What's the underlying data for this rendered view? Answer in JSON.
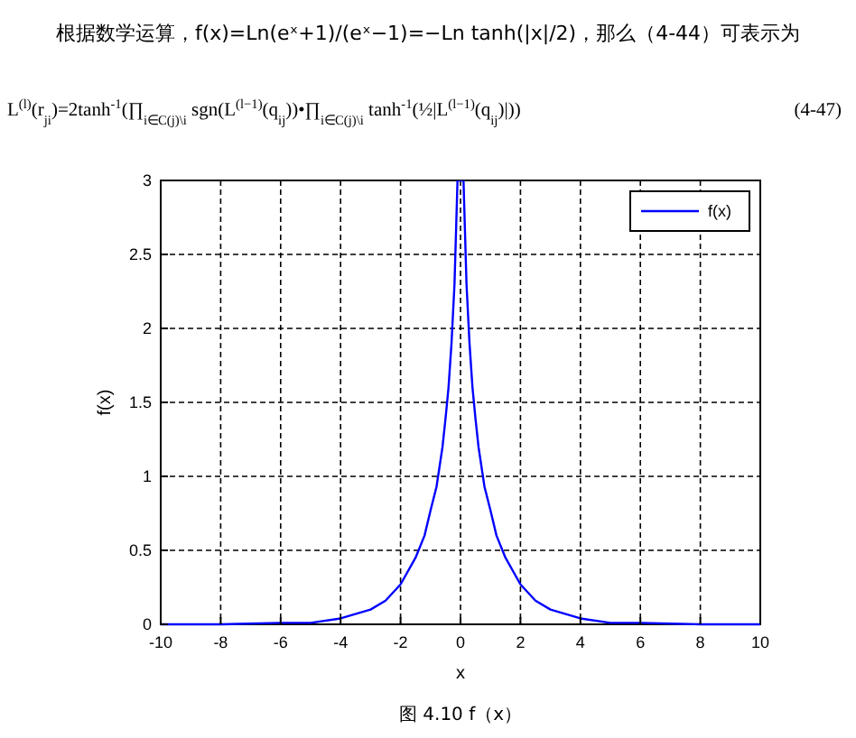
{
  "chart_data": {
    "type": "line",
    "xlabel": "x",
    "ylabel": "f(x)",
    "annotations": [
      "根据数学运算，f(x)=Ln(eˣ+1)/(eˣ−1)=−Ln tanh(|x|/2)，那么（4-44）可表示为",
      "L$^{(l)}$(r$_{ji}$)=2tanh$^{-1}$(∏$_{i∈C(j)\\i}$ sgn(L$^{(l−1)}$(q$_{ij}$))•∏$_{i∈C(j)\\i}$ tanh$^{-1}$(½|L$^{(l−1)}$(q$_{ij}$)|))",
      "(4-47)",
      "图 4.10 f（x）"
    ],
    "x": [
      -10,
      -8,
      -6,
      -5,
      -4,
      -3,
      -2.5,
      -2,
      -1.5,
      -1.2,
      -1,
      -0.8,
      -0.6,
      -0.5,
      -0.4,
      -0.3,
      -0.2,
      -0.1,
      0.1,
      0.2,
      0.3,
      0.4,
      0.5,
      0.6,
      0.8,
      1,
      1.2,
      1.5,
      2,
      2.5,
      3,
      4,
      5,
      6,
      8,
      10
    ],
    "series": [
      {
        "name": "f(x)",
        "color": "#0000ff",
        "values": [
          0,
          0,
          0.01,
          0.01,
          0.04,
          0.1,
          0.16,
          0.27,
          0.45,
          0.6,
          0.77,
          0.93,
          1.2,
          1.39,
          1.6,
          1.9,
          2.3,
          3.0,
          3.0,
          2.3,
          1.9,
          1.6,
          1.39,
          1.2,
          0.93,
          0.77,
          0.6,
          0.45,
          0.27,
          0.16,
          0.1,
          0.04,
          0.01,
          0.01,
          0,
          0
        ]
      }
    ],
    "xlim": [
      -10,
      10
    ],
    "xticks": [
      -10,
      -8,
      -6,
      -4,
      -2,
      0,
      2,
      4,
      6,
      8,
      10
    ],
    "ylim": [
      0,
      3
    ],
    "yticks": [
      0,
      0.5,
      1,
      1.5,
      2,
      2.5,
      3
    ],
    "grid": true,
    "legend": "top right",
    "line_style": "solid"
  }
}
